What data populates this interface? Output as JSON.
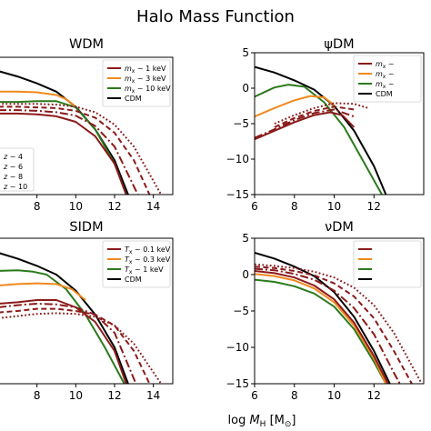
{
  "figure": {
    "title": "Halo Mass Function",
    "xlabel": "log M_H [M_⊙]",
    "xlabel_main": "log ",
    "xlabel_M": "M",
    "xlabel_sub": "H",
    "xlabel_unit": " [M",
    "xlabel_unit_sub": "⊙",
    "xlabel_close": "]"
  },
  "colors": {
    "dark_red": "#8b1a1a",
    "orange": "#f0891e",
    "green": "#2b7a1c",
    "black": "#000000"
  },
  "chart_data": [
    {
      "type": "line",
      "title": "WDM",
      "xlim": [
        6,
        15
      ],
      "ylim": [
        -15,
        5
      ],
      "xticks": [
        "8",
        "10",
        "12",
        "14"
      ],
      "yticks": [],
      "legend": {
        "placement": "top-right",
        "entries": [
          {
            "label": "m_x ~ 1 keV",
            "prefix": "m",
            "sub": "x",
            "suffix": " ~ 1 keV",
            "color": "#8b1a1a"
          },
          {
            "label": "m_x ~ 3 keV",
            "prefix": "m",
            "sub": "x",
            "suffix": " ~ 3 keV",
            "color": "#f0891e"
          },
          {
            "label": "m_x ~ 10 keV",
            "prefix": "m",
            "sub": "x",
            "suffix": " ~ 10 keV",
            "color": "#2b7a1c"
          },
          {
            "label": "CDM",
            "prefix": "CDM",
            "sub": "",
            "suffix": "",
            "color": "#000000"
          }
        ]
      },
      "style_legend": {
        "entries": [
          {
            "label": "z ~ 4",
            "prefix": "z",
            "suffix": " ~ 4",
            "dash": "solid"
          },
          {
            "label": "z ~ 6",
            "prefix": "z",
            "suffix": " ~ 6",
            "dash": "dashdot"
          },
          {
            "label": "z ~ 8",
            "prefix": "z",
            "suffix": " ~ 8",
            "dash": "dashed"
          },
          {
            "label": "z ~ 10",
            "prefix": "z",
            "suffix": " ~ 10",
            "dash": "dotted"
          }
        ]
      },
      "series": [
        {
          "color": "#000000",
          "dash": "solid",
          "x": [
            6,
            7,
            8,
            9,
            10,
            11,
            12,
            12.7
          ],
          "y": [
            3,
            2.2,
            1.2,
            0,
            -2.2,
            -5.5,
            -10,
            -15
          ]
        },
        {
          "color": "#2b7a1c",
          "dash": "solid",
          "x": [
            6,
            7,
            8,
            9,
            10,
            11,
            12,
            12.6
          ],
          "y": [
            -1.5,
            -1.5,
            -1.4,
            -1.4,
            -2.3,
            -5.5,
            -10.5,
            -15
          ]
        },
        {
          "color": "#f0891e",
          "dash": "solid",
          "x": [
            6,
            7,
            8,
            9,
            9.5,
            10
          ],
          "y": [
            0,
            0,
            -0.1,
            -0.5,
            -1.1,
            -2.2
          ]
        },
        {
          "color": "#8b1a1a",
          "dash": "solid",
          "x": [
            6,
            7,
            8,
            9,
            10,
            11,
            12,
            12.6
          ],
          "y": [
            -3.2,
            -3.2,
            -3.3,
            -3.6,
            -4.4,
            -6.5,
            -10.5,
            -15
          ]
        },
        {
          "color": "#8b1a1a",
          "dash": "dashdot",
          "x": [
            6,
            7,
            8,
            9,
            10,
            11,
            12,
            13.2
          ],
          "y": [
            -2.7,
            -2.7,
            -2.8,
            -3,
            -3.5,
            -5,
            -8,
            -15
          ]
        },
        {
          "color": "#8b1a1a",
          "dash": "dashed",
          "x": [
            6,
            7,
            8,
            9,
            10,
            11,
            12,
            13,
            13.8
          ],
          "y": [
            -2.2,
            -2.2,
            -2.3,
            -2.4,
            -2.8,
            -3.8,
            -6,
            -10,
            -15
          ]
        },
        {
          "color": "#8b1a1a",
          "dash": "dotted",
          "x": [
            6,
            7,
            8,
            9,
            10,
            11,
            12,
            13,
            14.4
          ],
          "y": [
            -1.8,
            -1.8,
            -1.8,
            -1.9,
            -2.2,
            -3,
            -4.8,
            -8,
            -15
          ]
        }
      ]
    },
    {
      "type": "line",
      "title": "ψDM",
      "xlim": [
        6,
        14.5
      ],
      "ylim": [
        -15,
        5
      ],
      "xticks": [
        "6",
        "8",
        "10",
        "12"
      ],
      "yticks": [
        "5",
        "0",
        "−5",
        "−10",
        "−15"
      ],
      "legend": {
        "placement": "top-right",
        "entries": [
          {
            "label": "m_x ~",
            "prefix": "m",
            "sub": "x",
            "suffix": " ~",
            "color": "#8b1a1a"
          },
          {
            "label": "m_x ~",
            "prefix": "m",
            "sub": "x",
            "suffix": " ~",
            "color": "#f0891e"
          },
          {
            "label": "m_x ~",
            "prefix": "m",
            "sub": "x",
            "suffix": " ~",
            "color": "#2b7a1c"
          },
          {
            "label": "CDM",
            "prefix": "CDM",
            "sub": "",
            "suffix": "",
            "color": "#000000"
          }
        ]
      },
      "series": [
        {
          "color": "#000000",
          "dash": "solid",
          "x": [
            6,
            7,
            8,
            9,
            10,
            11,
            12,
            12.6
          ],
          "y": [
            3,
            2.2,
            1.1,
            -0.2,
            -2.5,
            -6,
            -11,
            -15
          ]
        },
        {
          "color": "#2b7a1c",
          "dash": "solid",
          "x": [
            6,
            7,
            7.7,
            8.5,
            9.5,
            10.5,
            11.5,
            12.4
          ],
          "y": [
            -1.2,
            0.1,
            0.5,
            0.2,
            -2,
            -5.5,
            -10.5,
            -15
          ]
        },
        {
          "color": "#f0891e",
          "dash": "solid",
          "x": [
            6,
            7,
            8,
            8.8,
            9.5,
            10
          ],
          "y": [
            -4,
            -2.8,
            -1.7,
            -1.1,
            -1.3,
            -2.4
          ]
        },
        {
          "color": "#8b1a1a",
          "dash": "solid",
          "x": [
            6,
            7,
            8,
            9,
            9.8,
            10.4,
            11
          ],
          "y": [
            -7.2,
            -6,
            -4.8,
            -3.8,
            -3.4,
            -3.8,
            -5.5
          ]
        },
        {
          "color": "#8b1a1a",
          "dash": "dashdot",
          "x": [
            6,
            7,
            8,
            9,
            10,
            11
          ],
          "y": [
            -7,
            -5.8,
            -4.5,
            -3.5,
            -3,
            -4
          ]
        },
        {
          "color": "#8b1a1a",
          "dash": "dashed",
          "x": [
            7,
            8,
            9,
            10,
            11
          ],
          "y": [
            -5.5,
            -4.2,
            -3.2,
            -2.6,
            -3
          ]
        },
        {
          "color": "#8b1a1a",
          "dash": "dotted",
          "x": [
            7,
            8,
            9,
            10,
            11,
            11.7
          ],
          "y": [
            -5,
            -3.8,
            -2.8,
            -2.1,
            -2.2,
            -2.8
          ]
        }
      ]
    },
    {
      "type": "line",
      "title": "SIDM",
      "xlim": [
        6,
        15
      ],
      "ylim": [
        -15,
        5
      ],
      "xticks": [
        "8",
        "10",
        "12",
        "14"
      ],
      "yticks": [],
      "legend": {
        "placement": "top-right",
        "entries": [
          {
            "label": "T_x ~ 0.1 keV",
            "prefix": "T",
            "sub": "x",
            "suffix": " ~ 0.1 keV",
            "color": "#8b1a1a"
          },
          {
            "label": "T_x ~ 0.3 keV",
            "prefix": "T",
            "sub": "x",
            "suffix": " ~ 0.3 keV",
            "color": "#f0891e"
          },
          {
            "label": "T_x ~ 1 keV",
            "prefix": "T",
            "sub": "x",
            "suffix": " ~ 1 keV",
            "color": "#2b7a1c"
          },
          {
            "label": "CDM",
            "prefix": "CDM",
            "sub": "",
            "suffix": "",
            "color": "#000000"
          }
        ]
      },
      "series": [
        {
          "color": "#000000",
          "dash": "solid",
          "x": [
            6,
            7,
            8,
            9,
            10,
            11,
            12,
            12.7
          ],
          "y": [
            3,
            2.2,
            1.2,
            0,
            -2.2,
            -5.5,
            -10,
            -15
          ]
        },
        {
          "color": "#2b7a1c",
          "dash": "solid",
          "x": [
            6,
            7,
            7.8,
            8.5,
            9.5,
            10.5,
            11.5,
            12.5
          ],
          "y": [
            0.5,
            0.6,
            0.4,
            0,
            -2,
            -5.5,
            -10,
            -15
          ]
        },
        {
          "color": "#f0891e",
          "dash": "solid",
          "x": [
            6,
            7,
            8,
            9,
            9.8,
            10.5
          ],
          "y": [
            -1.5,
            -1.3,
            -1.2,
            -1.3,
            -2,
            -3.5
          ]
        },
        {
          "color": "#8b1a1a",
          "dash": "solid",
          "x": [
            6,
            7,
            8,
            9,
            10,
            11,
            12,
            12.6
          ],
          "y": [
            -4,
            -3.8,
            -3.5,
            -3.5,
            -4.5,
            -6.5,
            -10.5,
            -15
          ]
        },
        {
          "color": "#8b1a1a",
          "dash": "dashdot",
          "x": [
            6,
            7,
            8,
            9,
            10,
            11,
            12,
            13.1
          ],
          "y": [
            -4.5,
            -4.2,
            -4,
            -4.1,
            -4.5,
            -5.5,
            -8,
            -15
          ]
        },
        {
          "color": "#8b1a1a",
          "dash": "dashed",
          "x": [
            6,
            7,
            8,
            9,
            10,
            11,
            12,
            13,
            13.8
          ],
          "y": [
            -5.2,
            -5,
            -4.7,
            -4.7,
            -5,
            -5.5,
            -7,
            -10.5,
            -15
          ]
        },
        {
          "color": "#8b1a1a",
          "dash": "dotted",
          "x": [
            6,
            7,
            8,
            9,
            10,
            11,
            12,
            13,
            14.4
          ],
          "y": [
            -6,
            -5.7,
            -5.4,
            -5.3,
            -5.4,
            -5.8,
            -7,
            -9.5,
            -15
          ]
        }
      ]
    },
    {
      "type": "line",
      "title": "νDM",
      "xlim": [
        6,
        14.5
      ],
      "ylim": [
        -15,
        5
      ],
      "xticks": [
        "6",
        "8",
        "10",
        "12"
      ],
      "yticks": [
        "5",
        "0",
        "−5",
        "−10",
        "−15"
      ],
      "legend": {
        "placement": "top-right",
        "entries": [
          {
            "label": "",
            "prefix": "",
            "sub": "",
            "suffix": "",
            "color": "#8b1a1a"
          },
          {
            "label": "",
            "prefix": "",
            "sub": "",
            "suffix": "",
            "color": "#f0891e"
          },
          {
            "label": "",
            "prefix": "",
            "sub": "",
            "suffix": "",
            "color": "#2b7a1c"
          },
          {
            "label": "",
            "prefix": "",
            "sub": "",
            "suffix": "",
            "color": "#000000"
          }
        ]
      },
      "series": [
        {
          "color": "#000000",
          "dash": "solid",
          "x": [
            6,
            7,
            8,
            9,
            10,
            11,
            12,
            12.8
          ],
          "y": [
            3,
            2.2,
            1.1,
            -0.2,
            -2.4,
            -5.8,
            -10.5,
            -15
          ]
        },
        {
          "color": "#2b7a1c",
          "dash": "solid",
          "x": [
            6,
            7,
            8,
            9,
            10,
            11,
            12,
            12.6
          ],
          "y": [
            -0.7,
            -1,
            -1.6,
            -2.6,
            -4.4,
            -7.5,
            -12,
            -15
          ]
        },
        {
          "color": "#f0891e",
          "dash": "solid",
          "x": [
            6,
            7,
            8,
            9,
            10,
            11,
            12,
            12.6
          ],
          "y": [
            0.1,
            -0.2,
            -0.8,
            -1.9,
            -3.8,
            -7,
            -11.5,
            -15
          ]
        },
        {
          "color": "#8b1a1a",
          "dash": "solid",
          "x": [
            6,
            7,
            8,
            9,
            10,
            11,
            12,
            12.7
          ],
          "y": [
            0.5,
            0.2,
            -0.4,
            -1.5,
            -3.4,
            -6.6,
            -11.2,
            -15
          ]
        },
        {
          "color": "#8b1a1a",
          "dash": "dashdot",
          "x": [
            6,
            7,
            8,
            9,
            10,
            11,
            12,
            13,
            13.3
          ],
          "y": [
            0.8,
            0.6,
            0.1,
            -0.7,
            -2.2,
            -4.6,
            -8.2,
            -13.5,
            -15
          ]
        },
        {
          "color": "#8b1a1a",
          "dash": "dashed",
          "x": [
            6,
            7,
            8,
            9,
            10,
            11,
            12,
            13,
            13.9
          ],
          "y": [
            1.1,
            0.9,
            0.5,
            -0.1,
            -1.2,
            -3,
            -6,
            -10.5,
            -15
          ]
        },
        {
          "color": "#8b1a1a",
          "dash": "dotted",
          "x": [
            6,
            7,
            8,
            9,
            10,
            11,
            12,
            13,
            14.4
          ],
          "y": [
            1.4,
            1.2,
            0.9,
            0.4,
            -0.4,
            -1.8,
            -4.2,
            -8,
            -15
          ]
        }
      ]
    }
  ]
}
